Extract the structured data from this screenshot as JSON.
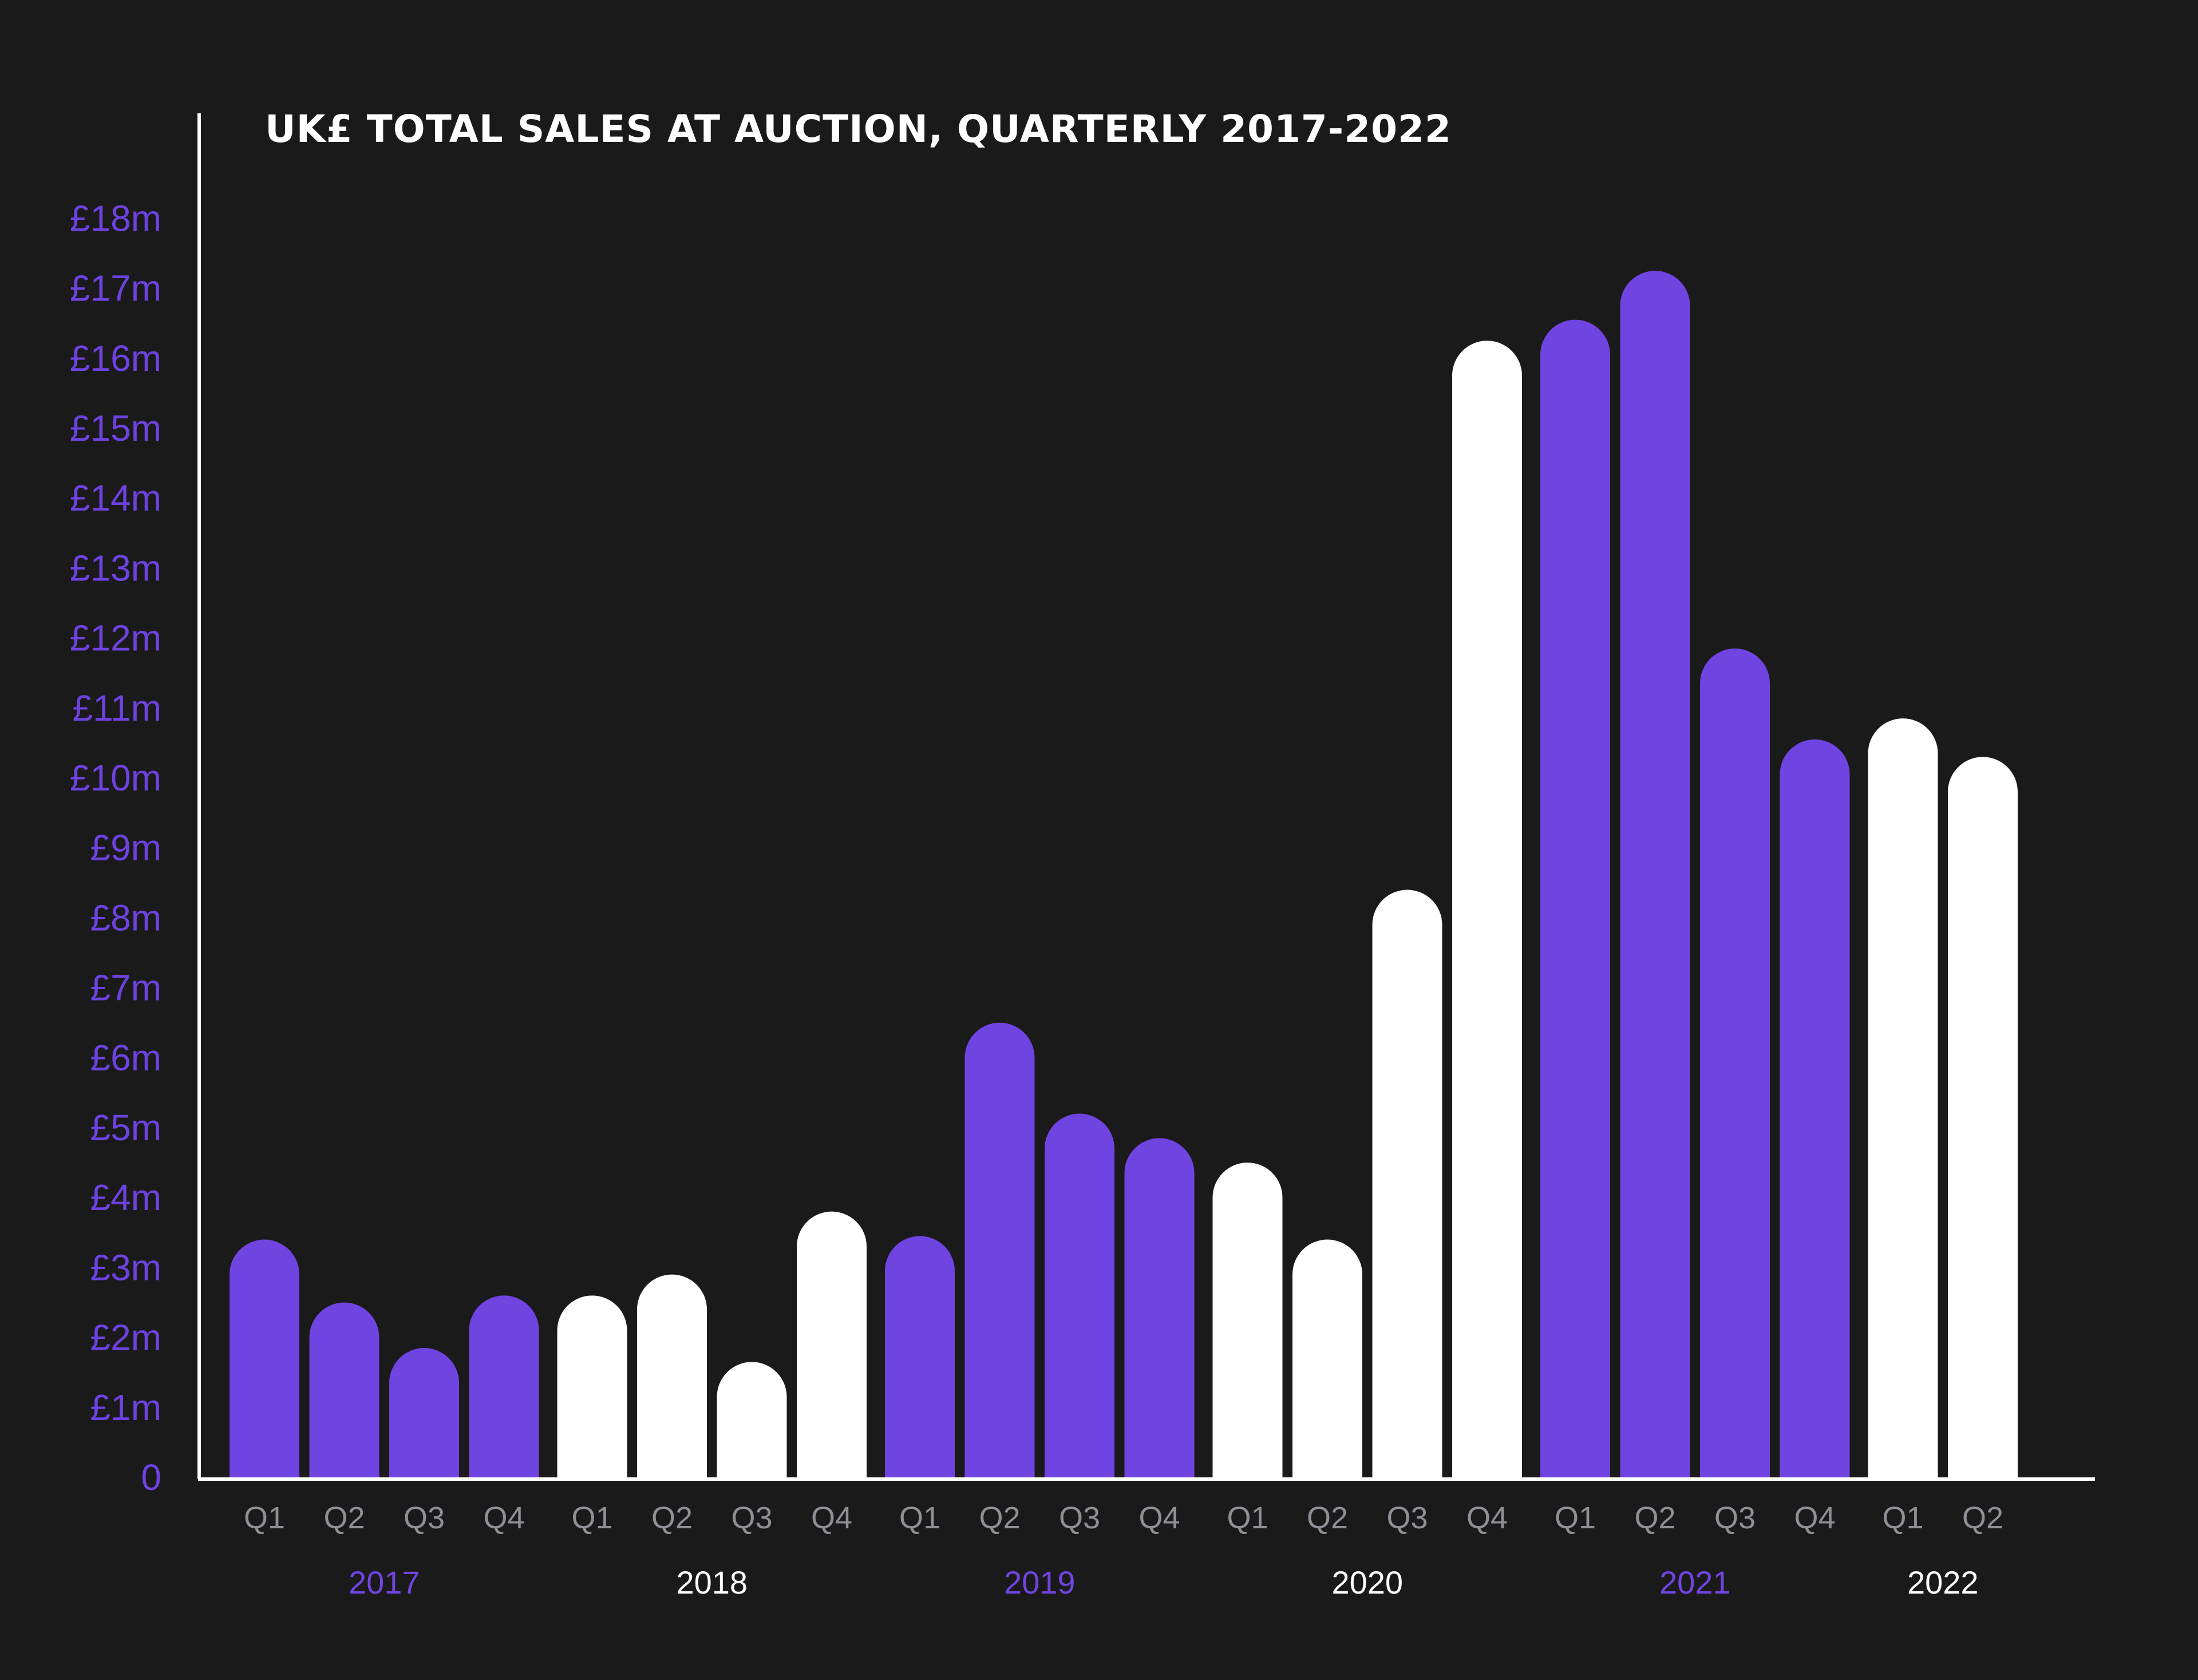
{
  "chart_data": {
    "type": "bar",
    "title": "UK£ TOTAL SALES AT AUCTION, QUARTERLY 2017-2022",
    "ylim": [
      0,
      18
    ],
    "yticks": [
      "0",
      "£1m",
      "£2m",
      "£3m",
      "£4m",
      "£5m",
      "£6m",
      "£7m",
      "£8m",
      "£9m",
      "£10m",
      "£11m",
      "£12m",
      "£13m",
      "£14m",
      "£15m",
      "£16m",
      "£17m",
      "£18m"
    ],
    "grid": false,
    "years": [
      {
        "label": "2017",
        "color": "#7044e0",
        "quarters": [
          "Q1",
          "Q2",
          "Q3",
          "Q4"
        ],
        "values": [
          3.4,
          2.5,
          1.85,
          2.6
        ]
      },
      {
        "label": "2018",
        "color": "#ffffff",
        "quarters": [
          "Q1",
          "Q2",
          "Q3",
          "Q4"
        ],
        "values": [
          2.6,
          2.9,
          1.65,
          3.8
        ]
      },
      {
        "label": "2019",
        "color": "#7044e0",
        "quarters": [
          "Q1",
          "Q2",
          "Q3",
          "Q4"
        ],
        "values": [
          3.45,
          6.5,
          5.2,
          4.85
        ]
      },
      {
        "label": "2020",
        "color": "#ffffff",
        "quarters": [
          "Q1",
          "Q2",
          "Q3",
          "Q4"
        ],
        "values": [
          4.5,
          3.4,
          8.4,
          16.25
        ]
      },
      {
        "label": "2021",
        "color": "#7044e0",
        "quarters": [
          "Q1",
          "Q2",
          "Q3",
          "Q4"
        ],
        "values": [
          16.55,
          17.25,
          11.85,
          10.55
        ]
      },
      {
        "label": "2022",
        "color": "#ffffff",
        "quarters": [
          "Q1",
          "Q2"
        ],
        "values": [
          10.85,
          10.3
        ]
      }
    ]
  }
}
